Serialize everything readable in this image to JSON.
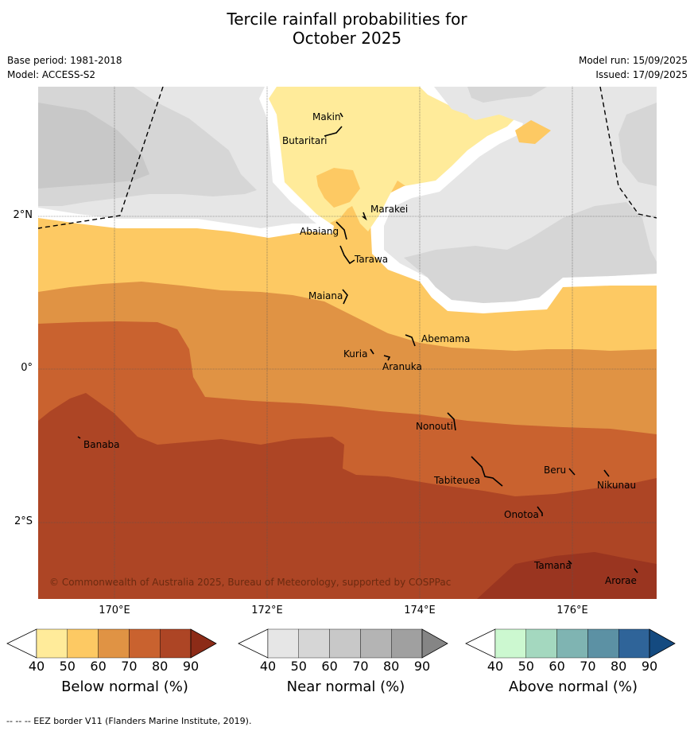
{
  "title_line1": "Tercile rainfall probabilities for",
  "title_line2": "October 2025",
  "meta_left": [
    "Base period: 1981-2018",
    "Model: ACCESS-S2"
  ],
  "meta_right": [
    "Model run: 15/09/2025",
    "Issued: 17/09/2025"
  ],
  "map": {
    "lon_labels": [
      "170°E",
      "172°E",
      "174°E",
      "176°E"
    ],
    "lat_labels": [
      "2°N",
      "0°",
      "2°S"
    ],
    "islands": [
      "Makin",
      "Butaritari",
      "Marakei",
      "Abaiang",
      "Tarawa",
      "Maiana",
      "Abemama",
      "Kuria",
      "Aranuka",
      "Nonouti",
      "Banaba",
      "Tabiteuea",
      "Beru",
      "Nikunau",
      "Onotoa",
      "Tamana",
      "Arorae"
    ],
    "copyright": "© Commonwealth of Australia 2025, Bureau of Meteorology, supported by COSPPac"
  },
  "colorbars": [
    {
      "title": "Below normal (%)",
      "ticks": [
        "40",
        "50",
        "60",
        "70",
        "80",
        "90"
      ],
      "colors": [
        "#ffffff",
        "#ffeb9a",
        "#fdc963",
        "#e09344",
        "#c9622f",
        "#ad4525",
        "#8c2b17"
      ]
    },
    {
      "title": "Near normal (%)",
      "ticks": [
        "40",
        "50",
        "60",
        "70",
        "80",
        "90"
      ],
      "colors": [
        "#ffffff",
        "#e6e6e6",
        "#d6d6d6",
        "#c8c8c8",
        "#b4b4b4",
        "#a0a0a0",
        "#858585"
      ]
    },
    {
      "title": "Above normal (%)",
      "ticks": [
        "40",
        "50",
        "60",
        "70",
        "80",
        "90"
      ],
      "colors": [
        "#ffffff",
        "#ccf8d0",
        "#a4d8bf",
        "#7fb4b2",
        "#5c91a4",
        "#2f6499",
        "#144a80"
      ]
    }
  ],
  "footer": "--  --  -- EEZ border V11 (Flanders Marine Institute, 2019)."
}
